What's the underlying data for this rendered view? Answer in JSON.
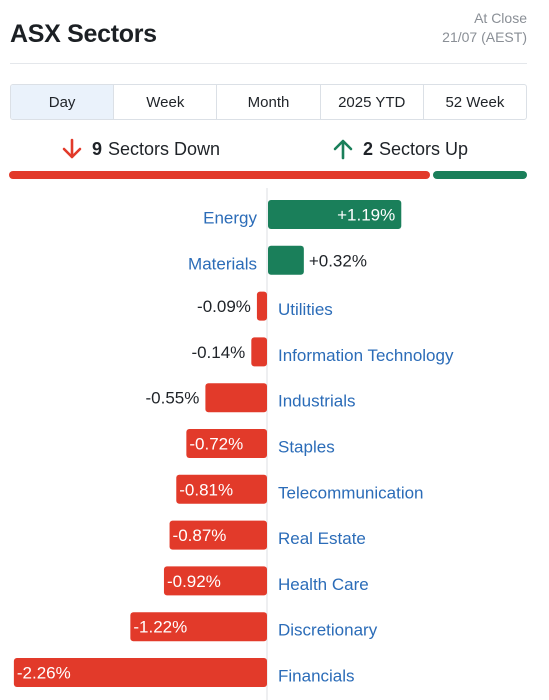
{
  "header": {
    "title": "ASX Sectors",
    "status_label": "At Close",
    "status_date": "21/07 (AEST)"
  },
  "tabs": [
    {
      "label": "Day",
      "active": true
    },
    {
      "label": "Week",
      "active": false
    },
    {
      "label": "Month",
      "active": false
    },
    {
      "label": "2025 YTD",
      "active": false
    },
    {
      "label": "52 Week",
      "active": false
    }
  ],
  "summary": {
    "down_count": "9",
    "down_label": "Sectors Down",
    "up_count": "2",
    "up_label": "Sectors Up"
  },
  "colors": {
    "up": "#1a7f5a",
    "down": "#e23a2a",
    "link": "#2b6cb8",
    "zero_line": "#dcdfe3"
  },
  "chart_data": {
    "type": "bar",
    "orientation": "horizontal",
    "categories": [
      "Energy",
      "Materials",
      "Utilities",
      "Information Technology",
      "Industrials",
      "Staples",
      "Telecommunication",
      "Real Estate",
      "Health Care",
      "Discretionary",
      "Financials"
    ],
    "values": [
      1.19,
      0.32,
      -0.09,
      -0.14,
      -0.55,
      -0.72,
      -0.81,
      -0.87,
      -0.92,
      -1.22,
      -2.26
    ],
    "labels": [
      "+1.19%",
      "+0.32%",
      "-0.09%",
      "-0.14%",
      "-0.55%",
      "-0.72%",
      "-0.81%",
      "-0.87%",
      "-0.92%",
      "-1.22%",
      "-2.26%"
    ],
    "unit": "%"
  }
}
